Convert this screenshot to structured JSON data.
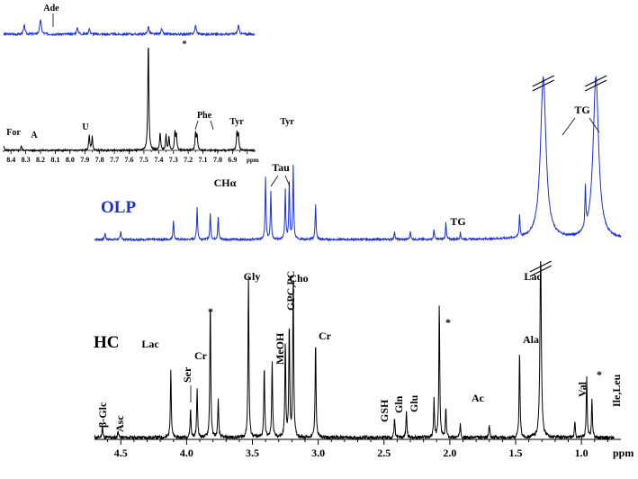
{
  "chart_data": [
    {
      "type": "line",
      "panel": "main",
      "xlabel": "ppm",
      "xlim": [
        4.7,
        0.7
      ],
      "x_ticks": [
        4.5,
        4.0,
        3.5,
        3.0,
        2.5,
        2.0,
        1.5,
        1.0
      ],
      "x_tick_labels": [
        "4.5",
        "4.0",
        "3.5",
        "3.0",
        "2.5",
        "2.0",
        "1.5",
        "1.0"
      ],
      "series": [
        {
          "name": "OLP",
          "color": "#1a2fd6",
          "peaks": [
            {
              "x": 4.62,
              "y": 0.04
            },
            {
              "x": 4.5,
              "y": 0.05
            },
            {
              "x": 4.1,
              "y": 0.12
            },
            {
              "x": 3.92,
              "y": 0.2
            },
            {
              "x": 3.82,
              "y": 0.16
            },
            {
              "x": 3.76,
              "y": 0.14
            },
            {
              "x": 3.4,
              "y": 0.38
            },
            {
              "x": 3.36,
              "y": 0.3
            },
            {
              "x": 3.25,
              "y": 0.3
            },
            {
              "x": 3.22,
              "y": 0.35
            },
            {
              "x": 3.19,
              "y": 0.45
            },
            {
              "x": 3.02,
              "y": 0.22
            },
            {
              "x": 2.42,
              "y": 0.05
            },
            {
              "x": 2.3,
              "y": 0.05
            },
            {
              "x": 2.12,
              "y": 0.06
            },
            {
              "x": 2.03,
              "y": 0.1
            },
            {
              "x": 1.92,
              "y": 0.04
            },
            {
              "x": 1.47,
              "y": 0.14
            },
            {
              "x": 1.29,
              "y": 1.0
            },
            {
              "x": 0.97,
              "y": 0.25
            },
            {
              "x": 0.89,
              "y": 1.0
            }
          ]
        },
        {
          "name": "HC",
          "color": "#000000",
          "peaks": [
            {
              "x": 4.64,
              "y": 0.06
            },
            {
              "x": 4.52,
              "y": 0.04
            },
            {
              "x": 4.12,
              "y": 0.36
            },
            {
              "x": 3.97,
              "y": 0.15
            },
            {
              "x": 3.92,
              "y": 0.26
            },
            {
              "x": 3.82,
              "y": 0.72
            },
            {
              "x": 3.76,
              "y": 0.2
            },
            {
              "x": 3.53,
              "y": 0.85
            },
            {
              "x": 3.41,
              "y": 0.38
            },
            {
              "x": 3.35,
              "y": 0.4
            },
            {
              "x": 3.25,
              "y": 0.5
            },
            {
              "x": 3.22,
              "y": 0.6
            },
            {
              "x": 3.19,
              "y": 0.85
            },
            {
              "x": 3.02,
              "y": 0.52
            },
            {
              "x": 2.42,
              "y": 0.1
            },
            {
              "x": 2.33,
              "y": 0.14
            },
            {
              "x": 2.12,
              "y": 0.2
            },
            {
              "x": 2.08,
              "y": 0.7
            },
            {
              "x": 2.03,
              "y": 0.15
            },
            {
              "x": 1.92,
              "y": 0.08
            },
            {
              "x": 1.7,
              "y": 0.07
            },
            {
              "x": 1.47,
              "y": 0.45
            },
            {
              "x": 1.31,
              "y": 1.0
            },
            {
              "x": 1.05,
              "y": 0.08
            },
            {
              "x": 0.96,
              "y": 0.32
            },
            {
              "x": 0.92,
              "y": 0.2
            }
          ]
        }
      ],
      "annotations": {
        "olp": [
          {
            "text": "CHα",
            "x": 3.78
          },
          {
            "text": "Tau",
            "x": 3.34
          },
          {
            "text": "TG",
            "x": 2.1
          },
          {
            "text": "TG",
            "x": 1.12
          }
        ],
        "hc": [
          {
            "text": "β-Glc",
            "x": 4.64,
            "vertical": true
          },
          {
            "text": "Asc",
            "x": 4.52,
            "vertical": true
          },
          {
            "text": "Lac",
            "x": 4.12
          },
          {
            "text": "Ser",
            "x": 3.97,
            "vertical": true
          },
          {
            "text": "Cr",
            "x": 3.92
          },
          {
            "text": "*",
            "x": 3.83
          },
          {
            "text": "Gly",
            "x": 3.53
          },
          {
            "text": "MeOH",
            "x": 3.35,
            "vertical": true
          },
          {
            "text": "GPC,PC",
            "x": 3.24,
            "vertical": true
          },
          {
            "text": "Cho",
            "x": 3.19
          },
          {
            "text": "Cr",
            "x": 3.02
          },
          {
            "text": "GSH",
            "x": 2.55,
            "vertical": true
          },
          {
            "text": "Gln",
            "x": 2.44,
            "vertical": true
          },
          {
            "text": "Glu",
            "x": 2.34,
            "vertical": true
          },
          {
            "text": "*",
            "x": 2.08
          },
          {
            "text": "Ac",
            "x": 1.92
          },
          {
            "text": "Ala",
            "x": 1.47
          },
          {
            "text": "Lac",
            "x": 1.33
          },
          {
            "text": "Val",
            "x": 1.04,
            "vertical": true
          },
          {
            "text": "*",
            "x": 0.98
          },
          {
            "text": "Ile,Leu",
            "x": 0.92,
            "vertical": true
          }
        ]
      },
      "panel_labels": {
        "olp": "OLP",
        "hc": "HC"
      }
    },
    {
      "type": "line",
      "panel": "inset",
      "xlabel": "ppm",
      "xlim": [
        8.45,
        6.75
      ],
      "x_ticks": [
        8.4,
        8.3,
        8.2,
        8.1,
        8.0,
        7.9,
        7.8,
        7.7,
        7.6,
        7.5,
        7.4,
        7.3,
        7.2,
        7.1,
        7.0,
        6.9
      ],
      "x_tick_labels": [
        "8.4",
        "8.3",
        "8.2",
        "8.1",
        "8.0",
        "7.9",
        "7.8",
        "7.7",
        "7.6",
        "7.5",
        "7.4",
        "7.3",
        "7.2",
        "7.1",
        "7.0",
        "6.9"
      ],
      "series": [
        {
          "name": "OLP",
          "color": "#1a2fd6",
          "peaks": [
            {
              "x": 8.31,
              "y": 0.08
            },
            {
              "x": 8.2,
              "y": 0.14
            },
            {
              "x": 7.95,
              "y": 0.06
            },
            {
              "x": 7.87,
              "y": 0.05
            },
            {
              "x": 7.47,
              "y": 0.07
            },
            {
              "x": 7.38,
              "y": 0.05
            },
            {
              "x": 7.15,
              "y": 0.08
            },
            {
              "x": 6.86,
              "y": 0.08
            }
          ]
        },
        {
          "name": "HC",
          "color": "#000000",
          "peaks": [
            {
              "x": 8.45,
              "y": 0.04
            },
            {
              "x": 8.33,
              "y": 0.04
            },
            {
              "x": 7.87,
              "y": 0.14
            },
            {
              "x": 7.85,
              "y": 0.12
            },
            {
              "x": 7.47,
              "y": 1.0
            },
            {
              "x": 7.39,
              "y": 0.16
            },
            {
              "x": 7.35,
              "y": 0.14
            },
            {
              "x": 7.33,
              "y": 0.12
            },
            {
              "x": 7.29,
              "y": 0.16
            },
            {
              "x": 7.28,
              "y": 0.14
            },
            {
              "x": 7.15,
              "y": 0.16
            },
            {
              "x": 7.14,
              "y": 0.14
            },
            {
              "x": 6.87,
              "y": 0.16
            },
            {
              "x": 6.86,
              "y": 0.15
            }
          ]
        }
      ],
      "annotations": {
        "olp": [
          {
            "text": "Ade",
            "x": 8.2
          }
        ],
        "hc": [
          {
            "text": "For",
            "x": 8.45
          },
          {
            "text": "A",
            "x": 8.32
          },
          {
            "text": "U",
            "x": 7.87
          },
          {
            "text": "*",
            "x": 7.47
          },
          {
            "text": "Phe",
            "x": 7.35
          },
          {
            "text": "Tyr",
            "x": 7.15
          },
          {
            "text": "Tyr",
            "x": 6.86
          }
        ]
      }
    }
  ]
}
